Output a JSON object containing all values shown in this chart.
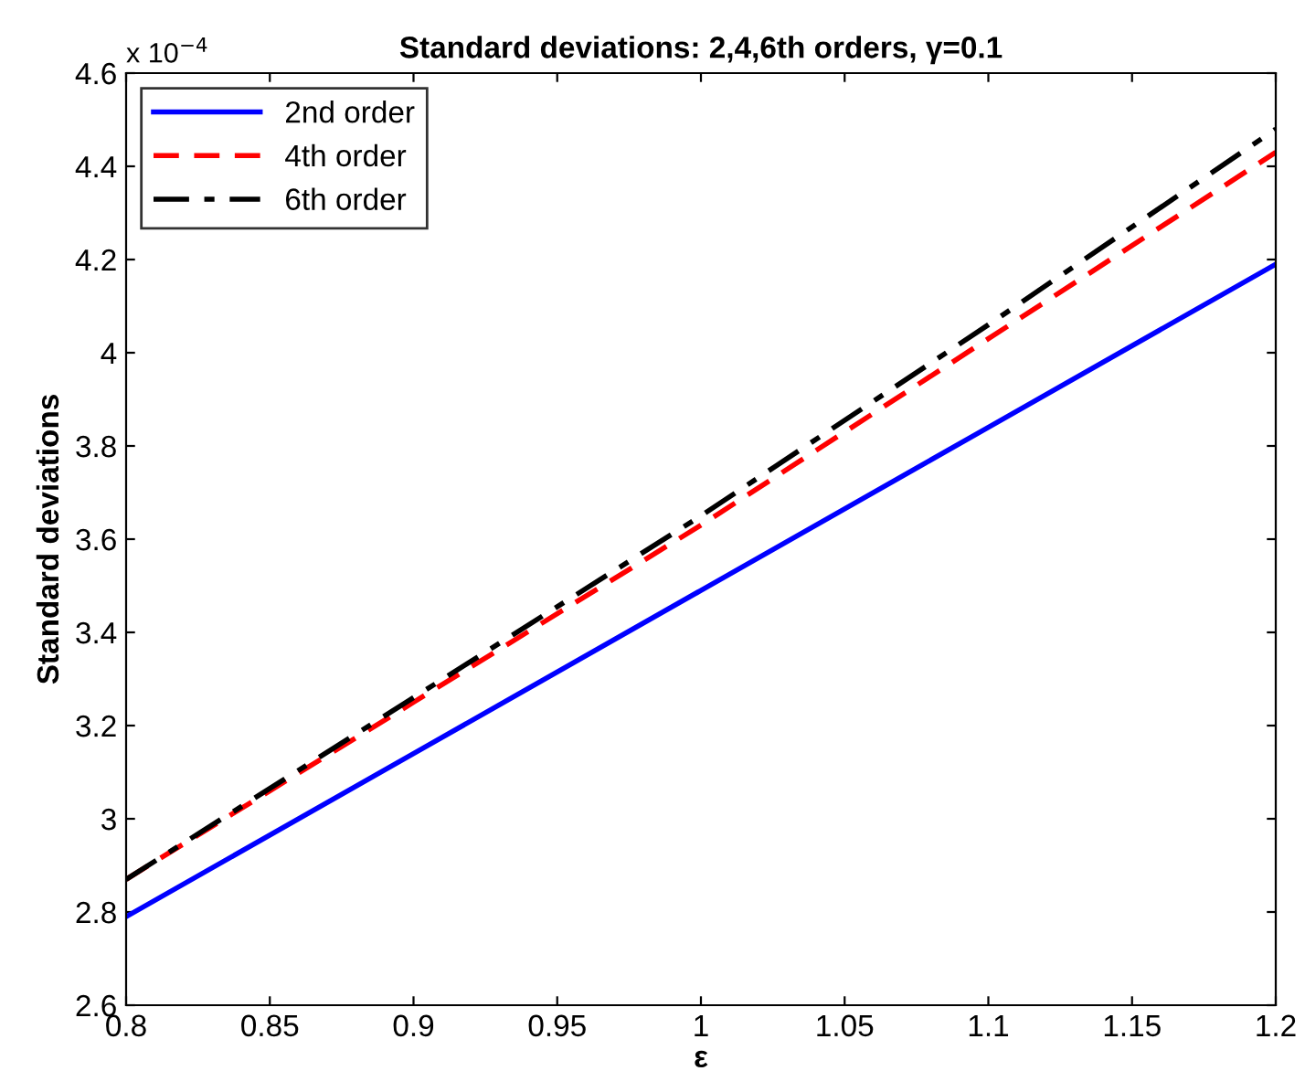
{
  "chart_data": {
    "type": "line",
    "title": "Standard deviations: 2,4,6th orders, γ=0.1",
    "xlabel": "ε",
    "ylabel": "Standard deviations",
    "annotations": [
      "x 10$^{−4}$"
    ],
    "x": [
      0.8,
      0.9,
      1.0,
      1.1,
      1.2
    ],
    "series": [
      {
        "name": "2nd order",
        "color": "#0000ff",
        "line_style": "solid",
        "values": [
          2.79,
          3.14,
          3.49,
          3.84,
          4.19
        ]
      },
      {
        "name": "4th order",
        "color": "#ff0000",
        "line_style": "dashed",
        "values": [
          2.87,
          3.25,
          3.63,
          4.03,
          4.43
        ]
      },
      {
        "name": "6th order",
        "color": "#000000",
        "line_style": "dashdot",
        "values": [
          2.87,
          3.26,
          3.65,
          4.06,
          4.48
        ]
      }
    ],
    "xlim": [
      0.8,
      1.2
    ],
    "xticks": [
      0.8,
      0.85,
      0.9,
      0.95,
      1,
      1.05,
      1.1,
      1.15,
      1.2
    ],
    "ylim": [
      2.6,
      4.6
    ],
    "yticks": [
      2.6,
      2.8,
      3,
      3.2,
      3.4,
      3.6,
      3.8,
      4,
      4.2,
      4.4,
      4.6
    ],
    "grid": false,
    "legend": "top left",
    "marker": "none"
  }
}
